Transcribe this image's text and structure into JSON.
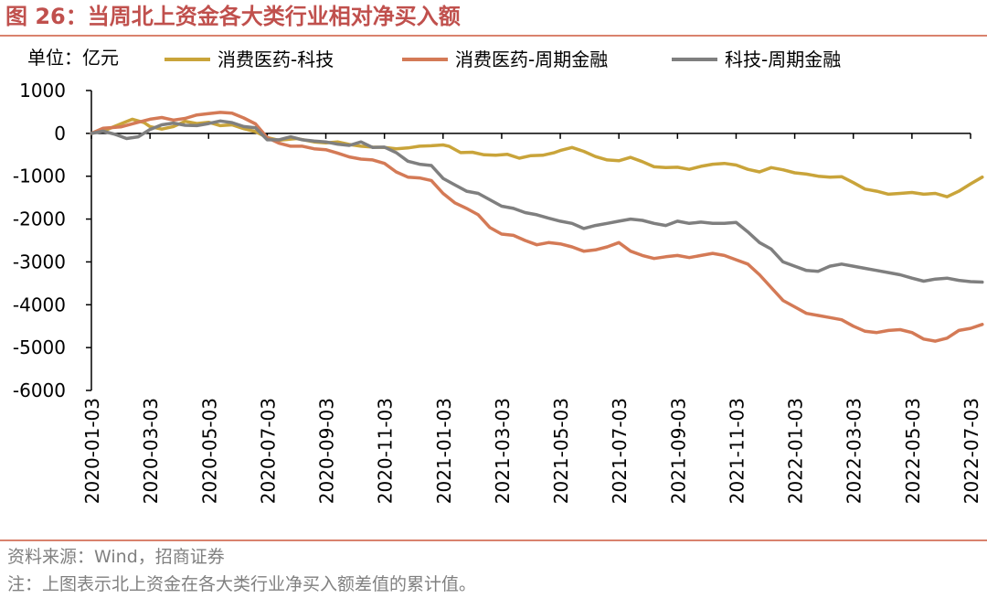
{
  "figure": {
    "title": "图 26：当周北上资金各大类行业相对净买入额",
    "unit_label": "单位：亿元",
    "source": "资料来源：Wind，招商证券",
    "note": "注：上图表示北上资金在各大类行业净买入额差值的累计值。"
  },
  "colors": {
    "accent": "#c0504d",
    "rule": "#d9826d",
    "footer_text": "#808080"
  },
  "chart_data": {
    "type": "line",
    "title": "当周北上资金各大类行业相对净买入额",
    "unit": "单位：亿元",
    "xlabel": "",
    "ylabel": "",
    "ylim": [
      -6000,
      1000
    ],
    "yticks": [
      1000,
      0,
      -1000,
      -2000,
      -3000,
      -4000,
      -5000,
      -6000
    ],
    "x_tick_labels": [
      "2020-01-03",
      "2020-03-03",
      "2020-05-03",
      "2020-07-03",
      "2020-09-03",
      "2020-11-03",
      "2021-01-03",
      "2021-03-03",
      "2021-05-03",
      "2021-07-03",
      "2021-09-03",
      "2021-11-03",
      "2022-01-03",
      "2022-03-03",
      "2022-05-03",
      "2022-07-03"
    ],
    "legend_position": "top",
    "grid": false,
    "series": [
      {
        "name": "消费医药-科技",
        "color": "#c9a43a",
        "points": [
          [
            0,
            0
          ],
          [
            0.25,
            80
          ],
          [
            0.5,
            220
          ],
          [
            0.7,
            330
          ],
          [
            0.9,
            250
          ],
          [
            1.0,
            160
          ],
          [
            1.2,
            100
          ],
          [
            1.4,
            160
          ],
          [
            1.6,
            280
          ],
          [
            1.8,
            230
          ],
          [
            2.0,
            260
          ],
          [
            2.2,
            180
          ],
          [
            2.4,
            200
          ],
          [
            2.6,
            110
          ],
          [
            2.8,
            40
          ],
          [
            3.0,
            -100
          ],
          [
            3.2,
            -160
          ],
          [
            3.5,
            -120
          ],
          [
            3.8,
            -200
          ],
          [
            4.0,
            -220
          ],
          [
            4.2,
            -200
          ],
          [
            4.4,
            -260
          ],
          [
            4.6,
            -300
          ],
          [
            4.8,
            -320
          ],
          [
            5.0,
            -330
          ],
          [
            5.2,
            -360
          ],
          [
            5.4,
            -340
          ],
          [
            5.6,
            -300
          ],
          [
            5.8,
            -290
          ],
          [
            6.0,
            -270
          ],
          [
            6.1,
            -300
          ],
          [
            6.3,
            -450
          ],
          [
            6.5,
            -440
          ],
          [
            6.7,
            -500
          ],
          [
            6.9,
            -510
          ],
          [
            7.1,
            -490
          ],
          [
            7.3,
            -580
          ],
          [
            7.5,
            -520
          ],
          [
            7.7,
            -510
          ],
          [
            7.9,
            -450
          ],
          [
            8.0,
            -400
          ],
          [
            8.2,
            -330
          ],
          [
            8.4,
            -420
          ],
          [
            8.6,
            -540
          ],
          [
            8.8,
            -620
          ],
          [
            9.0,
            -640
          ],
          [
            9.2,
            -560
          ],
          [
            9.4,
            -660
          ],
          [
            9.6,
            -780
          ],
          [
            9.8,
            -800
          ],
          [
            10.0,
            -790
          ],
          [
            10.2,
            -840
          ],
          [
            10.4,
            -770
          ],
          [
            10.6,
            -720
          ],
          [
            10.8,
            -700
          ],
          [
            11.0,
            -740
          ],
          [
            11.2,
            -840
          ],
          [
            11.4,
            -900
          ],
          [
            11.6,
            -800
          ],
          [
            11.8,
            -850
          ],
          [
            12.0,
            -920
          ],
          [
            12.2,
            -950
          ],
          [
            12.4,
            -1000
          ],
          [
            12.6,
            -1020
          ],
          [
            12.8,
            -1010
          ],
          [
            13.0,
            -1150
          ],
          [
            13.2,
            -1300
          ],
          [
            13.4,
            -1350
          ],
          [
            13.6,
            -1420
          ],
          [
            13.8,
            -1400
          ],
          [
            14.0,
            -1380
          ],
          [
            14.2,
            -1420
          ],
          [
            14.4,
            -1400
          ],
          [
            14.6,
            -1480
          ],
          [
            14.8,
            -1350
          ],
          [
            15.0,
            -1180
          ],
          [
            15.2,
            -1020
          ]
        ]
      },
      {
        "name": "消费医药-周期金融",
        "color": "#d47a56",
        "points": [
          [
            0,
            0
          ],
          [
            0.2,
            120
          ],
          [
            0.5,
            150
          ],
          [
            0.8,
            260
          ],
          [
            1.0,
            330
          ],
          [
            1.2,
            370
          ],
          [
            1.4,
            310
          ],
          [
            1.6,
            350
          ],
          [
            1.8,
            430
          ],
          [
            2.0,
            460
          ],
          [
            2.2,
            490
          ],
          [
            2.4,
            470
          ],
          [
            2.6,
            360
          ],
          [
            2.8,
            220
          ],
          [
            3.0,
            -100
          ],
          [
            3.2,
            -230
          ],
          [
            3.4,
            -300
          ],
          [
            3.6,
            -300
          ],
          [
            3.8,
            -360
          ],
          [
            4.0,
            -380
          ],
          [
            4.2,
            -460
          ],
          [
            4.4,
            -550
          ],
          [
            4.6,
            -600
          ],
          [
            4.8,
            -620
          ],
          [
            5.0,
            -700
          ],
          [
            5.2,
            -900
          ],
          [
            5.4,
            -1020
          ],
          [
            5.6,
            -1040
          ],
          [
            5.8,
            -1100
          ],
          [
            6.0,
            -1400
          ],
          [
            6.2,
            -1620
          ],
          [
            6.4,
            -1750
          ],
          [
            6.6,
            -1900
          ],
          [
            6.8,
            -2200
          ],
          [
            7.0,
            -2350
          ],
          [
            7.2,
            -2380
          ],
          [
            7.4,
            -2500
          ],
          [
            7.6,
            -2600
          ],
          [
            7.8,
            -2550
          ],
          [
            8.0,
            -2580
          ],
          [
            8.2,
            -2650
          ],
          [
            8.4,
            -2750
          ],
          [
            8.6,
            -2720
          ],
          [
            8.8,
            -2650
          ],
          [
            9.0,
            -2550
          ],
          [
            9.2,
            -2750
          ],
          [
            9.4,
            -2850
          ],
          [
            9.6,
            -2920
          ],
          [
            9.8,
            -2880
          ],
          [
            10.0,
            -2850
          ],
          [
            10.2,
            -2900
          ],
          [
            10.4,
            -2850
          ],
          [
            10.6,
            -2800
          ],
          [
            10.8,
            -2850
          ],
          [
            11.0,
            -2950
          ],
          [
            11.2,
            -3050
          ],
          [
            11.4,
            -3300
          ],
          [
            11.6,
            -3600
          ],
          [
            11.8,
            -3900
          ],
          [
            12.0,
            -4050
          ],
          [
            12.2,
            -4200
          ],
          [
            12.4,
            -4250
          ],
          [
            12.6,
            -4300
          ],
          [
            12.8,
            -4350
          ],
          [
            13.0,
            -4500
          ],
          [
            13.2,
            -4620
          ],
          [
            13.4,
            -4650
          ],
          [
            13.6,
            -4600
          ],
          [
            13.8,
            -4580
          ],
          [
            14.0,
            -4650
          ],
          [
            14.2,
            -4800
          ],
          [
            14.4,
            -4850
          ],
          [
            14.6,
            -4780
          ],
          [
            14.8,
            -4600
          ],
          [
            15.0,
            -4550
          ],
          [
            15.2,
            -4460
          ]
        ]
      },
      {
        "name": "科技-周期金融",
        "color": "#7f7f7f",
        "points": [
          [
            0,
            0
          ],
          [
            0.2,
            50
          ],
          [
            0.4,
            -20
          ],
          [
            0.6,
            -120
          ],
          [
            0.8,
            -80
          ],
          [
            1.0,
            90
          ],
          [
            1.2,
            200
          ],
          [
            1.4,
            240
          ],
          [
            1.6,
            190
          ],
          [
            1.8,
            180
          ],
          [
            2.0,
            230
          ],
          [
            2.2,
            290
          ],
          [
            2.4,
            250
          ],
          [
            2.6,
            160
          ],
          [
            2.8,
            130
          ],
          [
            3.0,
            -150
          ],
          [
            3.2,
            -150
          ],
          [
            3.4,
            -80
          ],
          [
            3.6,
            -150
          ],
          [
            3.8,
            -180
          ],
          [
            4.0,
            -200
          ],
          [
            4.2,
            -250
          ],
          [
            4.4,
            -280
          ],
          [
            4.6,
            -200
          ],
          [
            4.8,
            -330
          ],
          [
            5.0,
            -320
          ],
          [
            5.2,
            -450
          ],
          [
            5.4,
            -650
          ],
          [
            5.6,
            -720
          ],
          [
            5.8,
            -750
          ],
          [
            6.0,
            -1050
          ],
          [
            6.2,
            -1200
          ],
          [
            6.4,
            -1350
          ],
          [
            6.6,
            -1400
          ],
          [
            6.8,
            -1550
          ],
          [
            7.0,
            -1700
          ],
          [
            7.2,
            -1750
          ],
          [
            7.4,
            -1850
          ],
          [
            7.6,
            -1900
          ],
          [
            7.8,
            -1980
          ],
          [
            8.0,
            -2050
          ],
          [
            8.2,
            -2100
          ],
          [
            8.4,
            -2220
          ],
          [
            8.6,
            -2150
          ],
          [
            8.8,
            -2100
          ],
          [
            9.0,
            -2050
          ],
          [
            9.2,
            -2000
          ],
          [
            9.4,
            -2030
          ],
          [
            9.6,
            -2100
          ],
          [
            9.8,
            -2150
          ],
          [
            10.0,
            -2050
          ],
          [
            10.2,
            -2100
          ],
          [
            10.4,
            -2070
          ],
          [
            10.6,
            -2100
          ],
          [
            10.8,
            -2100
          ],
          [
            11.0,
            -2080
          ],
          [
            11.2,
            -2300
          ],
          [
            11.4,
            -2550
          ],
          [
            11.6,
            -2700
          ],
          [
            11.8,
            -3000
          ],
          [
            12.0,
            -3100
          ],
          [
            12.2,
            -3200
          ],
          [
            12.4,
            -3220
          ],
          [
            12.6,
            -3100
          ],
          [
            12.8,
            -3050
          ],
          [
            13.0,
            -3100
          ],
          [
            13.2,
            -3150
          ],
          [
            13.4,
            -3200
          ],
          [
            13.6,
            -3250
          ],
          [
            13.8,
            -3300
          ],
          [
            14.0,
            -3380
          ],
          [
            14.2,
            -3450
          ],
          [
            14.4,
            -3400
          ],
          [
            14.6,
            -3380
          ],
          [
            14.8,
            -3430
          ],
          [
            15.0,
            -3460
          ],
          [
            15.2,
            -3470
          ]
        ]
      }
    ]
  }
}
